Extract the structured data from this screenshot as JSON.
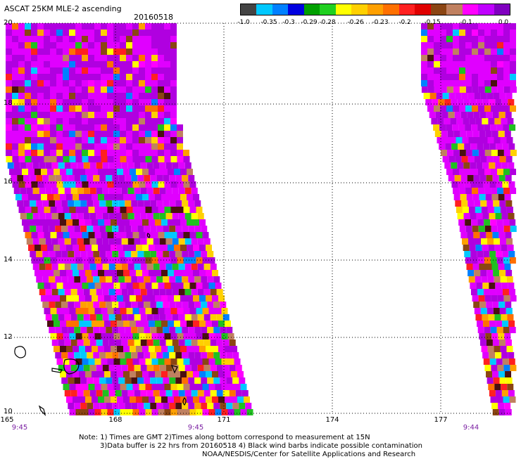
{
  "header": {
    "title": "ASCAT 25KM MLE-2 ascending",
    "date": "20160518"
  },
  "colorbar": {
    "colors": [
      "#444444",
      "#00c8ff",
      "#0080ff",
      "#0000e0",
      "#00a000",
      "#20d020",
      "#ffff00",
      "#ffd000",
      "#ffa000",
      "#ff7000",
      "#ff2020",
      "#e00000",
      "#8b4513",
      "#c08060",
      "#ff00ff",
      "#c000ff",
      "#8000c0"
    ],
    "labels": [
      "-1.0",
      "-0.35",
      "-0.3",
      "-0.29",
      "-0.28",
      "-0.26",
      "-0.23",
      "-0.2",
      "-0.15",
      "-0.1",
      "0.0"
    ]
  },
  "axes": {
    "lat_labels": [
      "20",
      "18",
      "16",
      "14",
      "12",
      "10"
    ],
    "lon_labels": [
      "165",
      "168",
      "171",
      "174",
      "177"
    ],
    "time_labels": [
      "9:45",
      "9:45",
      "9:44"
    ]
  },
  "note": {
    "line1": "Note: 1) Times are GMT 2)Times along bottom correspond to measurement at 15N",
    "line2": "3)Data buffer is 22 hrs from 20160518 4) Black wind barbs indicate possible contamination",
    "line3": "NOAA/NESDIS/Center for Satellite Applications and Research"
  }
}
